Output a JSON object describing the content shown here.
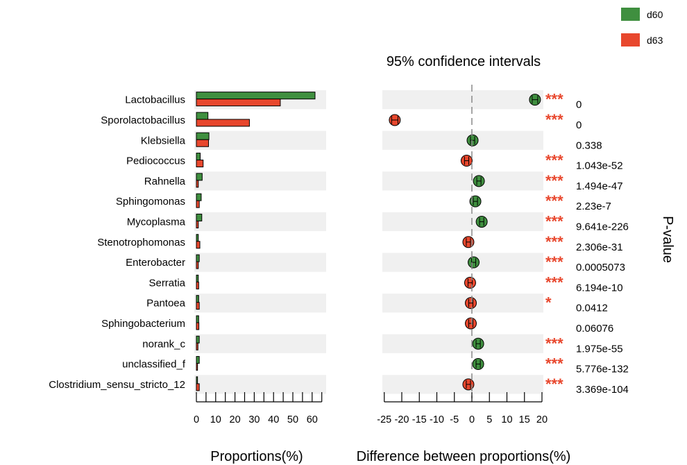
{
  "chart_data": {
    "type": "bar",
    "legend": [
      {
        "name": "d60",
        "color": "#3f8f3f"
      },
      {
        "name": "d63",
        "color": "#e8472d"
      }
    ],
    "categories": [
      "Lactobacillus",
      "Sporolactobacillus",
      "Klebsiella",
      "Pediococcus",
      "Rahnella",
      "Sphingomonas",
      "Mycoplasma",
      "Stenotrophomonas",
      "Enterobacter",
      "Serratia",
      "Pantoea",
      "Sphingobacterium",
      "norank_c",
      "unclassified_f",
      "Clostridium_sensu_stricto_12"
    ],
    "proportions": {
      "xlabel": "Proportions(%)",
      "xlim": [
        0,
        65
      ],
      "ticks": [
        0,
        10,
        20,
        30,
        40,
        50,
        60
      ],
      "series": [
        {
          "name": "d60",
          "values": [
            61.5,
            6.0,
            6.5,
            2.0,
            3.0,
            2.5,
            2.8,
            1.0,
            1.5,
            1.0,
            1.2,
            1.2,
            1.5,
            1.5,
            0.6
          ]
        },
        {
          "name": "d63",
          "values": [
            43.5,
            27.5,
            6.3,
            3.5,
            1.0,
            1.5,
            1.0,
            1.8,
            1.0,
            1.2,
            1.5,
            1.3,
            0.8,
            0.6,
            1.5
          ]
        }
      ]
    },
    "difference": {
      "title": "95% confidence intervals",
      "xlabel": "Difference between proportions(%)",
      "xlim": [
        -28,
        20
      ],
      "ticks": [
        -25,
        -20,
        -15,
        -10,
        -5,
        0,
        5,
        10,
        15,
        20
      ],
      "values": [
        18.0,
        -22.0,
        0.2,
        -1.5,
        2.0,
        1.0,
        2.8,
        -1.0,
        0.5,
        -0.5,
        -0.3,
        -0.3,
        1.8,
        1.8,
        -1.0
      ],
      "ci_halfwidth": [
        0.8,
        0.9,
        0.6,
        0.6,
        0.6,
        0.6,
        0.6,
        0.6,
        0.6,
        0.6,
        0.6,
        0.6,
        0.6,
        0.6,
        0.6
      ]
    },
    "significance": [
      "***",
      "***",
      "",
      "***",
      "***",
      "***",
      "***",
      "***",
      "***",
      "***",
      "*",
      "",
      "***",
      "***",
      "***"
    ],
    "pvalues": [
      "0",
      "0",
      "0.338",
      "1.043e-52",
      "1.494e-47",
      "2.23e-7",
      "9.641e-226",
      "2.306e-31",
      "0.0005073",
      "6.194e-10",
      "0.0412",
      "0.06076",
      "1.975e-55",
      "5.776e-132",
      "3.369e-104"
    ],
    "pvalue_label": "P-value"
  }
}
